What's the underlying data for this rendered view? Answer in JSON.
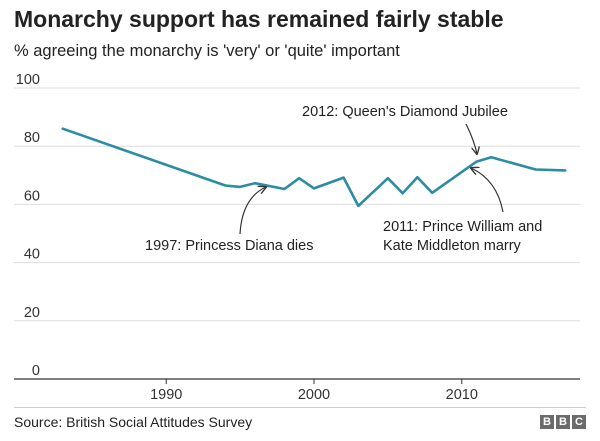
{
  "chart_data": {
    "type": "line",
    "title": "Monarchy support has remained fairly stable",
    "subtitle": "% agreeing the monarchy is 'very' or 'quite' important",
    "xlabel": "",
    "ylabel": "",
    "xlim": [
      1982,
      2018
    ],
    "ylim": [
      0,
      100
    ],
    "yticks": [
      0,
      20,
      40,
      60,
      80,
      100
    ],
    "xticks": [
      1990,
      2000,
      2010
    ],
    "grid": true,
    "line_color": "#2b8ca3",
    "series": [
      {
        "x": [
          1983,
          1994,
          1995,
          1996,
          1998,
          1999,
          2000,
          2002,
          2003,
          2005,
          2006,
          2007,
          2008,
          2011,
          2012,
          2015,
          2017
        ],
        "values": [
          86,
          66.5,
          66,
          67.3,
          65.3,
          69,
          65.5,
          69.2,
          59.5,
          69,
          63.8,
          69.3,
          64,
          74.7,
          76.2,
          72,
          71.7
        ]
      }
    ],
    "annotations": [
      {
        "text_lines": [
          "2012: Queen's Diamond Jubilee"
        ],
        "x": 2012,
        "y": 76.2
      },
      {
        "text_lines": [
          "1997: Princess Diana dies"
        ],
        "x": 1997,
        "y": 66.3
      },
      {
        "text_lines": [
          "2011: Prince William and",
          "Kate Middleton marry"
        ],
        "x": 2011,
        "y": 74.7
      }
    ]
  },
  "footer": {
    "source": "Source: British Social Attitudes Survey",
    "logo_letters": [
      "B",
      "B",
      "C"
    ]
  }
}
